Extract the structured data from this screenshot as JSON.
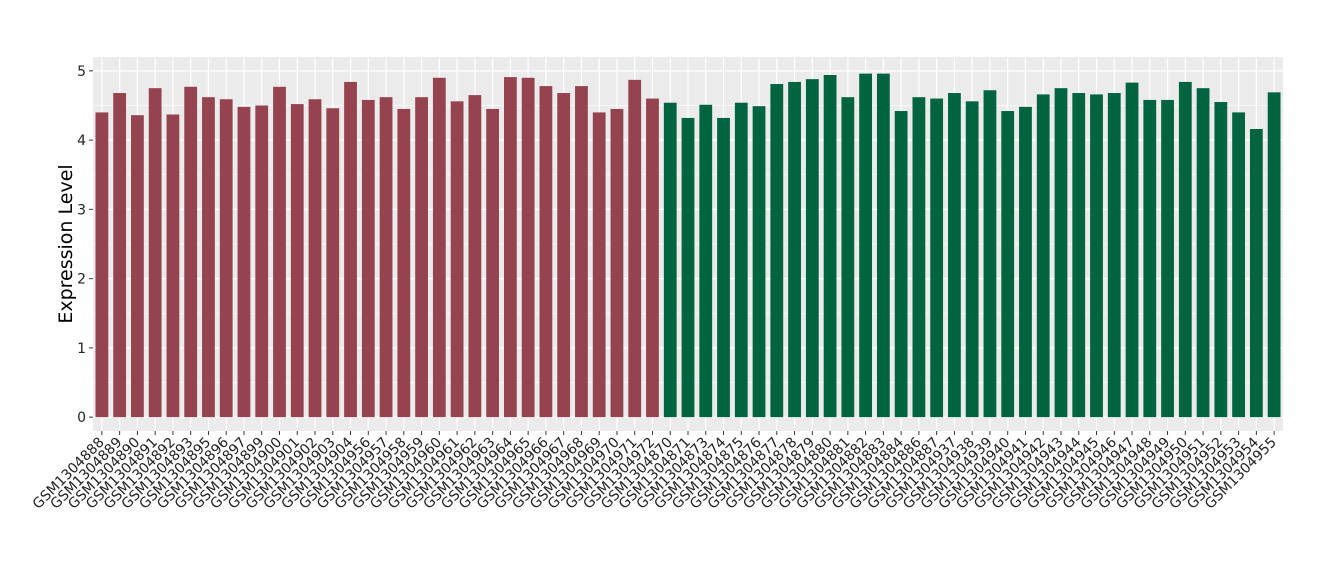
{
  "chart_data": {
    "type": "bar",
    "title": "",
    "xlabel": "",
    "ylabel": "Expression Level",
    "ylim": [
      -0.2,
      5.2
    ],
    "yticks": [
      "0",
      "1",
      "2",
      "3",
      "4",
      "5"
    ],
    "grid": true,
    "legend": "none",
    "colors": {
      "group1": "#964350",
      "group2": "#006440",
      "panel": "#EBEBEB",
      "grid": "#FFFFFF"
    },
    "categories": [
      "GSM1304888",
      "GSM1304889",
      "GSM1304890",
      "GSM1304891",
      "GSM1304892",
      "GSM1304893",
      "GSM1304895",
      "GSM1304896",
      "GSM1304897",
      "GSM1304899",
      "GSM1304900",
      "GSM1304901",
      "GSM1304902",
      "GSM1304903",
      "GSM1304904",
      "GSM1304956",
      "GSM1304957",
      "GSM1304958",
      "GSM1304959",
      "GSM1304960",
      "GSM1304961",
      "GSM1304962",
      "GSM1304963",
      "GSM1304964",
      "GSM1304965",
      "GSM1304966",
      "GSM1304967",
      "GSM1304968",
      "GSM1304969",
      "GSM1304970",
      "GSM1304971",
      "GSM1304972",
      "GSM1304870",
      "GSM1304871",
      "GSM1304873",
      "GSM1304874",
      "GSM1304875",
      "GSM1304876",
      "GSM1304877",
      "GSM1304878",
      "GSM1304879",
      "GSM1304880",
      "GSM1304881",
      "GSM1304882",
      "GSM1304883",
      "GSM1304884",
      "GSM1304886",
      "GSM1304887",
      "GSM1304937",
      "GSM1304938",
      "GSM1304939",
      "GSM1304940",
      "GSM1304941",
      "GSM1304942",
      "GSM1304943",
      "GSM1304944",
      "GSM1304945",
      "GSM1304946",
      "GSM1304947",
      "GSM1304948",
      "GSM1304949",
      "GSM1304950",
      "GSM1304951",
      "GSM1304952",
      "GSM1304953",
      "GSM1304954",
      "GSM1304955"
    ],
    "values": [
      4.4,
      4.68,
      4.36,
      4.75,
      4.37,
      4.77,
      4.62,
      4.59,
      4.48,
      4.5,
      4.77,
      4.52,
      4.59,
      4.46,
      4.84,
      4.58,
      4.62,
      4.45,
      4.62,
      4.9,
      4.56,
      4.65,
      4.45,
      4.91,
      4.9,
      4.78,
      4.68,
      4.78,
      4.4,
      4.45,
      4.87,
      4.6,
      4.54,
      4.32,
      4.51,
      4.32,
      4.54,
      4.49,
      4.81,
      4.84,
      4.88,
      4.94,
      4.62,
      4.96,
      4.96,
      4.42,
      4.62,
      4.6,
      4.68,
      4.56,
      4.72,
      4.42,
      4.48,
      4.66,
      4.75,
      4.68,
      4.66,
      4.68,
      4.83,
      4.58,
      4.58,
      4.84,
      4.75,
      4.55,
      4.4,
      4.16,
      4.69
    ],
    "groups": [
      1,
      1,
      1,
      1,
      1,
      1,
      1,
      1,
      1,
      1,
      1,
      1,
      1,
      1,
      1,
      1,
      1,
      1,
      1,
      1,
      1,
      1,
      1,
      1,
      1,
      1,
      1,
      1,
      1,
      1,
      1,
      1,
      2,
      2,
      2,
      2,
      2,
      2,
      2,
      2,
      2,
      2,
      2,
      2,
      2,
      2,
      2,
      2,
      2,
      2,
      2,
      2,
      2,
      2,
      2,
      2,
      2,
      2,
      2,
      2,
      2,
      2,
      2,
      2,
      2,
      2,
      2
    ]
  }
}
